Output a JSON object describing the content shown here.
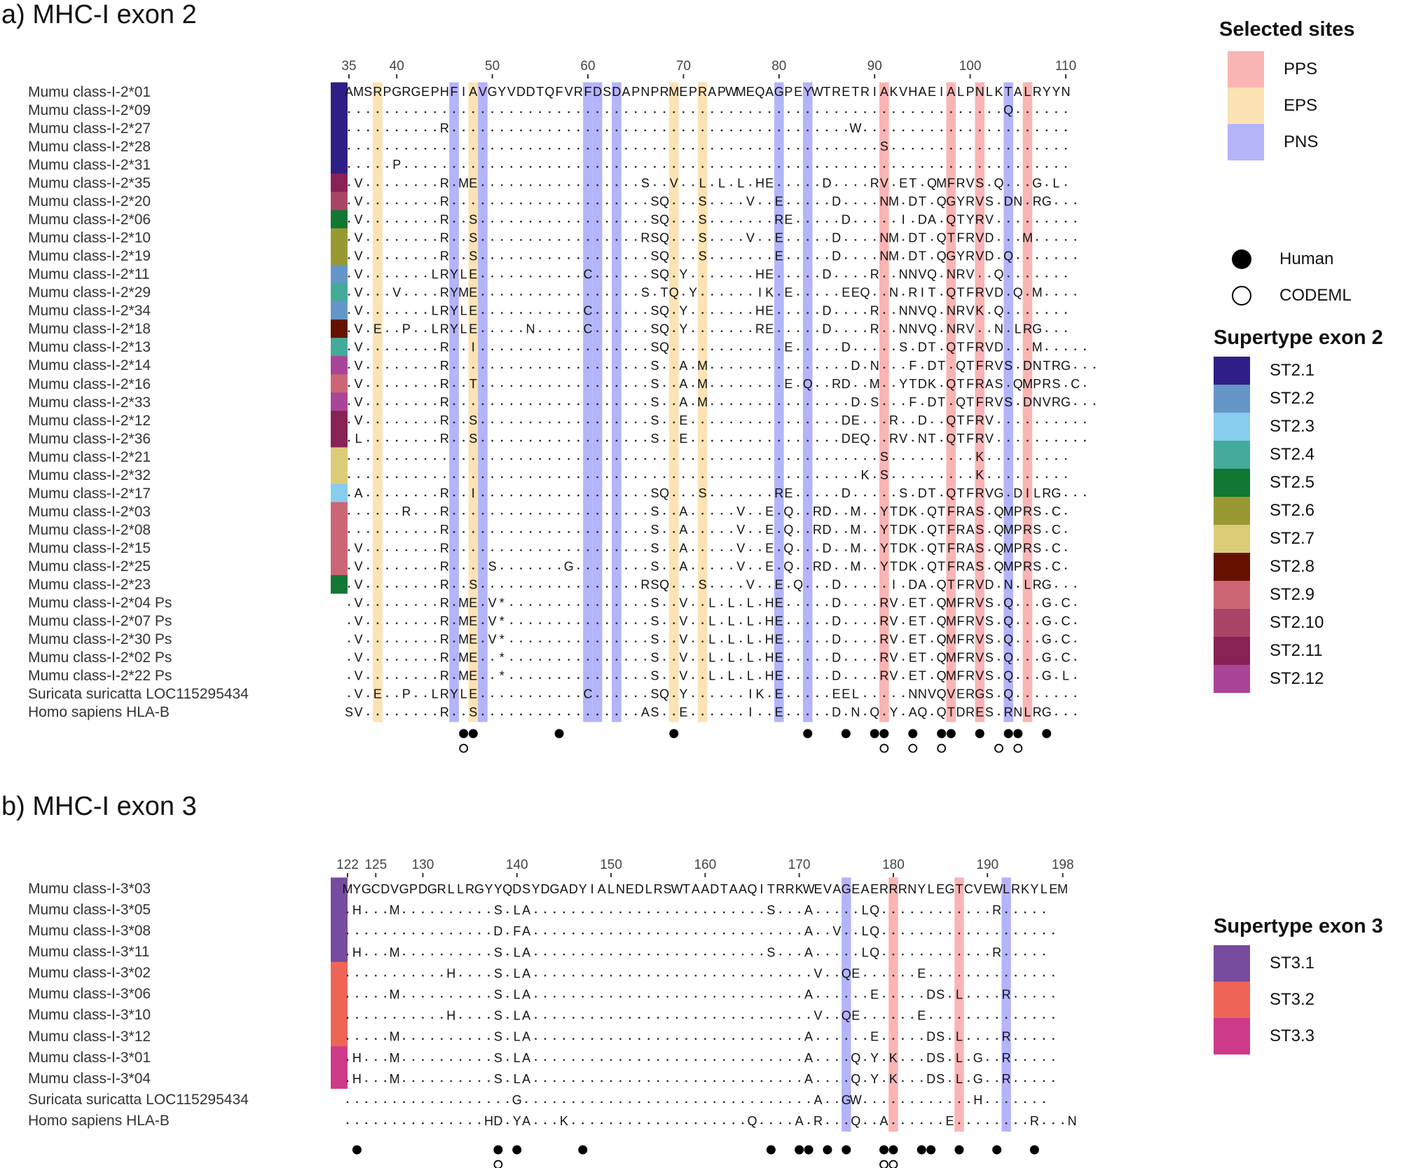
{
  "chart_data": [
    {
      "type": "table",
      "title": "a) MHC-I exon 2",
      "start": 35,
      "end": 110,
      "ticks": [
        35,
        40,
        50,
        60,
        70,
        80,
        90,
        100,
        110
      ],
      "reference": "AMSRPGRGEPHFIAVGYVDDTQFVRFDSDAPNPRMEPRAPWMEQAGPEYWTRETRIAKVHAEIALPNLKTALRYYN",
      "highlights": {
        "EPS": [
          38,
          48,
          69,
          72
        ],
        "PNS": [
          46,
          49,
          60,
          61,
          63,
          80,
          83,
          104
        ],
        "PPS": [
          91,
          98,
          101,
          106
        ]
      },
      "human_sites": [
        47,
        48,
        57,
        69,
        83,
        87,
        90,
        91,
        94,
        97,
        98,
        101,
        104,
        105,
        108
      ],
      "codeml_sites": [
        47,
        91,
        94,
        97,
        103,
        105
      ],
      "rows": [
        {
          "name": "Mumu class-I-2*01",
          "supertype": "ST2.1",
          "seq": "AMSRPGRGEPHFIAVGYVDDTQFVRFDSDAPNPRMEPRAPWMEQAGPEYWTRETRIAKVHAEIALPNLKTALRYYN"
        },
        {
          "name": "Mumu class-I-2*09",
          "supertype": "ST2.1",
          "seq": ".....................................................................Q......"
        },
        {
          "name": "Mumu class-I-2*27",
          "supertype": "ST2.1",
          "seq": "..........R..........................................W......................"
        },
        {
          "name": "Mumu class-I-2*28",
          "supertype": "ST2.1",
          "seq": "........................................................S..................."
        },
        {
          "name": "Mumu class-I-2*31",
          "supertype": "ST2.1",
          "seq": ".....P......................................................................"
        },
        {
          "name": "Mumu class-I-2*35",
          "supertype": "ST2.11",
          "seq": ".V........R.ME.................S..V..L.L.L.HE.....D....RV.ET.QMFRVS.Q...G.L."
        },
        {
          "name": "Mumu class-I-2*20",
          "supertype": "ST2.10",
          "seq": ".V........R.....................SQ...S....V..E.....D....NM.DT.QGYRVS.DN.RG..."
        },
        {
          "name": "Mumu class-I-2*06",
          "supertype": "ST2.5",
          "seq": ".V........R..S..................SQ...S.......RE.....D.....I.DA.QTYRV........."
        },
        {
          "name": "Mumu class-I-2*10",
          "supertype": "ST2.6",
          "seq": ".V........R..S.................RSQ...S....V..E.....D....NM.DT.QTFRVD...M....."
        },
        {
          "name": "Mumu class-I-2*19",
          "supertype": "ST2.6",
          "seq": ".V........R..S..................SQ...S.......E.....D....NM.DT.QGYRVD.Q......."
        },
        {
          "name": "Mumu class-I-2*11",
          "supertype": "ST2.2",
          "seq": ".V.......LRYLE...........C......SQ.Y.......HE.....D....R..NNVQ.NRV..Q......."
        },
        {
          "name": "Mumu class-I-2*29",
          "supertype": "ST2.4",
          "seq": ".V...V....RYME.................S.TQ.Y......IK.E.....EEQ..N.RIT.QTFRVD.Q.M...."
        },
        {
          "name": "Mumu class-I-2*34",
          "supertype": "ST2.2",
          "seq": ".V.......LRYLE...........C......SQ.Y.......HE.....D....R..NNVQ.NRVK.Q......."
        },
        {
          "name": "Mumu class-I-2*18",
          "supertype": "ST2.8",
          "seq": ".V.E..P..LRYLE.....N.....C......SQ.Y.......RE.....D....R..NNVQ.NRV..N.LRG..."
        },
        {
          "name": "Mumu class-I-2*13",
          "supertype": "ST2.4",
          "seq": ".V........R..I..................SQ............E.....D.....S.DT.QTFRVD...M....."
        },
        {
          "name": "Mumu class-I-2*14",
          "supertype": "ST2.12",
          "seq": ".V........R.....................S..A.M...............D.N...F.DT.QTFRVS.DNTRG..."
        },
        {
          "name": "Mumu class-I-2*16",
          "supertype": "ST2.9",
          "seq": ".V........R..T..................S..A.M........E.Q..RD..M..YTDK.QTFRAS.QMPRS.C."
        },
        {
          "name": "Mumu class-I-2*33",
          "supertype": "ST2.12",
          "seq": ".V........R.....................S..A.M...............D.S...F.DT.QTFRVS.DNVRG..."
        },
        {
          "name": "Mumu class-I-2*12",
          "supertype": "ST2.11",
          "seq": ".V........R..S..................S..E................DE...R..D..QTFRV.........."
        },
        {
          "name": "Mumu class-I-2*36",
          "supertype": "ST2.11",
          "seq": ".L........R..S..................S..E................DEQ..RV.NT.QTFRV.........."
        },
        {
          "name": "Mumu class-I-2*21",
          "supertype": "ST2.7",
          "seq": "........................................................S.........K........."
        },
        {
          "name": "Mumu class-I-2*32",
          "supertype": "ST2.7",
          "seq": "......................................................K.S.........K........."
        },
        {
          "name": "Mumu class-I-2*17",
          "supertype": "ST2.3",
          "seq": ".A........R..I..................SQ...S.......RE.....D.....S.DT.QTFRVG.DILRG..."
        },
        {
          "name": "Mumu class-I-2*03",
          "supertype": "ST2.9",
          "seq": "......R...R.....................S..A.....V..E.Q..RD..M..YTDK.QTFRAS.QMPRS.C."
        },
        {
          "name": "Mumu class-I-2*08",
          "supertype": "ST2.9",
          "seq": "..........R.....................S..A.....V..E.Q..RD..M..YTDK.QTFRAS.QMPRS.C."
        },
        {
          "name": "Mumu class-I-2*15",
          "supertype": "ST2.9",
          "seq": ".V........R.....................S..A.....V..E.Q...D..M..YTDK.QTFRAS.QMPRS.C."
        },
        {
          "name": "Mumu class-I-2*25",
          "supertype": "ST2.9",
          "seq": ".V........R....S.......G........S..A.....V..E.Q..RD..M..YTDK.QTFRAS.QMPRS.C."
        },
        {
          "name": "Mumu class-I-2*23",
          "supertype": "ST2.5",
          "seq": ".V........R..S.................RSQ...S....V..E.Q...D.....I.DA.QTFRVD.N.LRG..."
        },
        {
          "name": "Mumu class-I-2*04 Ps",
          "supertype": "",
          "seq": ".V........R.ME.V*...............S..V..L.L.L.HE.....D....RV.ET.QMFRVS.Q...G.C."
        },
        {
          "name": "Mumu class-I-2*07 Ps",
          "supertype": "",
          "seq": ".V........R.ME.V*...............S..V..L.L.L.HE.....D....RV.ET.QMFRVS.Q...G.C."
        },
        {
          "name": "Mumu class-I-2*30 Ps",
          "supertype": "",
          "seq": ".V........R.ME.V*...............S..V..L.L.L.HE.....D....RV.ET.QMFRVS.Q...G.C."
        },
        {
          "name": "Mumu class-I-2*02 Ps",
          "supertype": "",
          "seq": ".V........R.ME..*...............S..V..L.L.L.HE.....D....RV.ET.QMFRVS.Q...G.C."
        },
        {
          "name": "Mumu class-I-2*22 Ps",
          "supertype": "",
          "seq": ".V........R.ME..*...............S..V..L.L.L.HE.....D....RV.ET.QMFRVS.Q...G.L."
        },
        {
          "name": "Suricata suricatta LOC115295434",
          "supertype": "",
          "seq": ".V.E..P..LRYLE...........C......SQ.Y......IK.E.....EEL.....NNVQVERGS.Q......."
        },
        {
          "name": "Homo sapiens HLA-B",
          "supertype": "",
          "seq": "SV........R..S.................AS..E......I..E.....D.N.Q.Y.AQ.QTDRES.RNLRG..."
        }
      ]
    },
    {
      "type": "table",
      "title": "b) MHC-I exon 3",
      "start": 122,
      "end": 198,
      "ticks": [
        122,
        125,
        130,
        140,
        150,
        160,
        170,
        180,
        190,
        198
      ],
      "reference": "MYGCDVGPDGRLLRGYYQDSYDGADYIALNEDLRSWTAADTAAQITRRKWEVAGEAERRRNYLEGTCVEWLRKYLEM",
      "highlights": {
        "PNS": [
          175,
          192
        ],
        "PPS": [
          180,
          187
        ]
      },
      "human_sites": [
        123,
        138,
        140,
        147,
        167,
        170,
        171,
        173,
        175,
        179,
        180,
        183,
        184,
        187,
        191,
        195
      ],
      "codeml_sites": [
        138,
        179,
        180
      ],
      "rows": [
        {
          "name": "Mumu class-I-3*03",
          "supertype": "ST3.1",
          "seq": "MYGCDVGPDGRLLRGYYQDSYDGADYIALNEDLRSWTAADTAAQITRRKWEVAGEAERRRNYLEGTCVEWLRKYLEM"
        },
        {
          "name": "Mumu class-I-3*05",
          "supertype": "ST3.1",
          "seq": ".H...M..........S.LA.........................S...A.....LQ............R....."
        },
        {
          "name": "Mumu class-I-3*08",
          "supertype": "ST3.1",
          "seq": "................D.FA.............................A..V..LQ..................."
        },
        {
          "name": "Mumu class-I-3*11",
          "supertype": "ST3.1",
          "seq": ".H...M..........S.LA.........................S...A.....LQ............R....."
        },
        {
          "name": "Mumu class-I-3*02",
          "supertype": "ST3.2",
          "seq": "...........H....S.LA..............................V..QE......E.............."
        },
        {
          "name": "Mumu class-I-3*06",
          "supertype": "ST3.2",
          "seq": ".....M..........S.LA.............................A......E.....DS.L....R....."
        },
        {
          "name": "Mumu class-I-3*10",
          "supertype": "ST3.2",
          "seq": "...........H....S.LA..............................V..QE......E.............."
        },
        {
          "name": "Mumu class-I-3*12",
          "supertype": "ST3.2",
          "seq": ".....M..........S.LA.............................A......E.....DS.L....R....."
        },
        {
          "name": "Mumu class-I-3*01",
          "supertype": "ST3.3",
          "seq": ".H...M..........S.LA.............................A....Q.Y.K...DS.L.G..R....."
        },
        {
          "name": "Mumu class-I-3*04",
          "supertype": "ST3.3",
          "seq": ".H...M..........S.LA.............................A....Q.Y.K...DS.L.G..R....."
        },
        {
          "name": "Suricata suricatta LOC115295434",
          "supertype": "",
          "seq": "..................G...............................A..GW............H......."
        },
        {
          "name": "Homo sapiens HLA-B",
          "supertype": "",
          "seq": "...............HD.YA...K...................Q....A.R...Q..A......E........R...N"
        }
      ]
    }
  ],
  "legend": {
    "selected_sites": {
      "title": "Selected sites",
      "items": [
        {
          "label": "PPS",
          "color": "#fbb4b4"
        },
        {
          "label": "EPS",
          "color": "#fde2b4"
        },
        {
          "label": "PNS",
          "color": "#b4b4fb"
        }
      ]
    },
    "markers": [
      {
        "label": "Human",
        "shape": "filled-circle"
      },
      {
        "label": "CODEML",
        "shape": "open-circle"
      }
    ],
    "supertype_exon2": {
      "title": "Supertype exon 2",
      "items": [
        {
          "label": "ST2.1",
          "color": "#2f1e86"
        },
        {
          "label": "ST2.2",
          "color": "#6496c8"
        },
        {
          "label": "ST2.3",
          "color": "#88ccee"
        },
        {
          "label": "ST2.4",
          "color": "#44aa99"
        },
        {
          "label": "ST2.5",
          "color": "#117733"
        },
        {
          "label": "ST2.6",
          "color": "#999933"
        },
        {
          "label": "ST2.7",
          "color": "#ddcc77"
        },
        {
          "label": "ST2.8",
          "color": "#661100"
        },
        {
          "label": "ST2.9",
          "color": "#cc6677"
        },
        {
          "label": "ST2.10",
          "color": "#aa4466"
        },
        {
          "label": "ST2.11",
          "color": "#882255"
        },
        {
          "label": "ST2.12",
          "color": "#aa4499"
        }
      ]
    },
    "supertype_exon3": {
      "title": "Supertype exon 3",
      "items": [
        {
          "label": "ST3.1",
          "color": "#774b9e"
        },
        {
          "label": "ST3.2",
          "color": "#ee6557"
        },
        {
          "label": "ST3.3",
          "color": "#ce3a8a"
        }
      ]
    }
  }
}
